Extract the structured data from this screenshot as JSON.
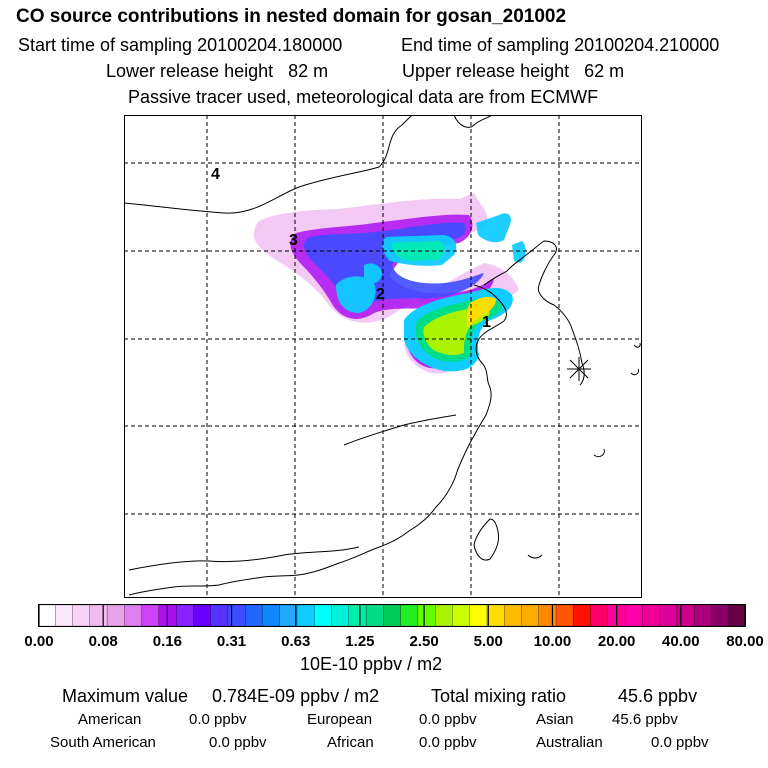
{
  "header": {
    "title": "CO  source contributions in nested domain for gosan_201002",
    "start_label": "Start time of sampling 20100204.180000",
    "end_label": "End time of sampling 20100204.210000",
    "lower_label": "Lower release height   82 m",
    "upper_label": "Upper release height   62 m",
    "note": "Passive tracer used, meteorological data are from ECMWF"
  },
  "map": {
    "labels": [
      "1",
      "2",
      "3",
      "4"
    ],
    "receptor": "gosan"
  },
  "colorbar": {
    "ticks": [
      "0.00",
      "0.08",
      "0.16",
      "0.31",
      "0.63",
      "1.25",
      "2.50",
      "5.00",
      "10.00",
      "20.00",
      "40.00",
      "80.00"
    ],
    "unit": "10E-10 ppbv / m2",
    "colors": [
      "#ffffff",
      "#fbe8fb",
      "#f6d2f6",
      "#f1bbf1",
      "#e8a2e8",
      "#dd7fee",
      "#cc44f5",
      "#aa11ee",
      "#8a22ff",
      "#6a00ff",
      "#5533ff",
      "#3f4cff",
      "#2266ff",
      "#1188ff",
      "#22aaff",
      "#11ccff",
      "#00ffff",
      "#00f0d8",
      "#00eeaa",
      "#00dd88",
      "#00cc55",
      "#22ee22",
      "#66ff00",
      "#aaf200",
      "#ccff00",
      "#ffff00",
      "#ffdd00",
      "#ffbb00",
      "#ffaa00",
      "#ff8800",
      "#ff5500",
      "#ff1100",
      "#ff0066",
      "#ff0099",
      "#ff00aa",
      "#ee0099",
      "#dd0099",
      "#cc0088",
      "#aa0077",
      "#880066",
      "#660044"
    ]
  },
  "stats": {
    "max_label": "Maximum value",
    "max_value": "0.784E-09 ppbv / m2",
    "total_label": "Total mixing ratio",
    "total_value": "45.6 ppbv",
    "regions": [
      {
        "name": "American",
        "value": "0.0 ppbv"
      },
      {
        "name": "European",
        "value": "0.0 ppbv"
      },
      {
        "name": "Asian",
        "value": "45.6 ppbv"
      },
      {
        "name": "South American",
        "value": "0.0 ppbv"
      },
      {
        "name": "African",
        "value": "0.0 ppbv"
      },
      {
        "name": "Australian",
        "value": "0.0 ppbv"
      }
    ]
  }
}
